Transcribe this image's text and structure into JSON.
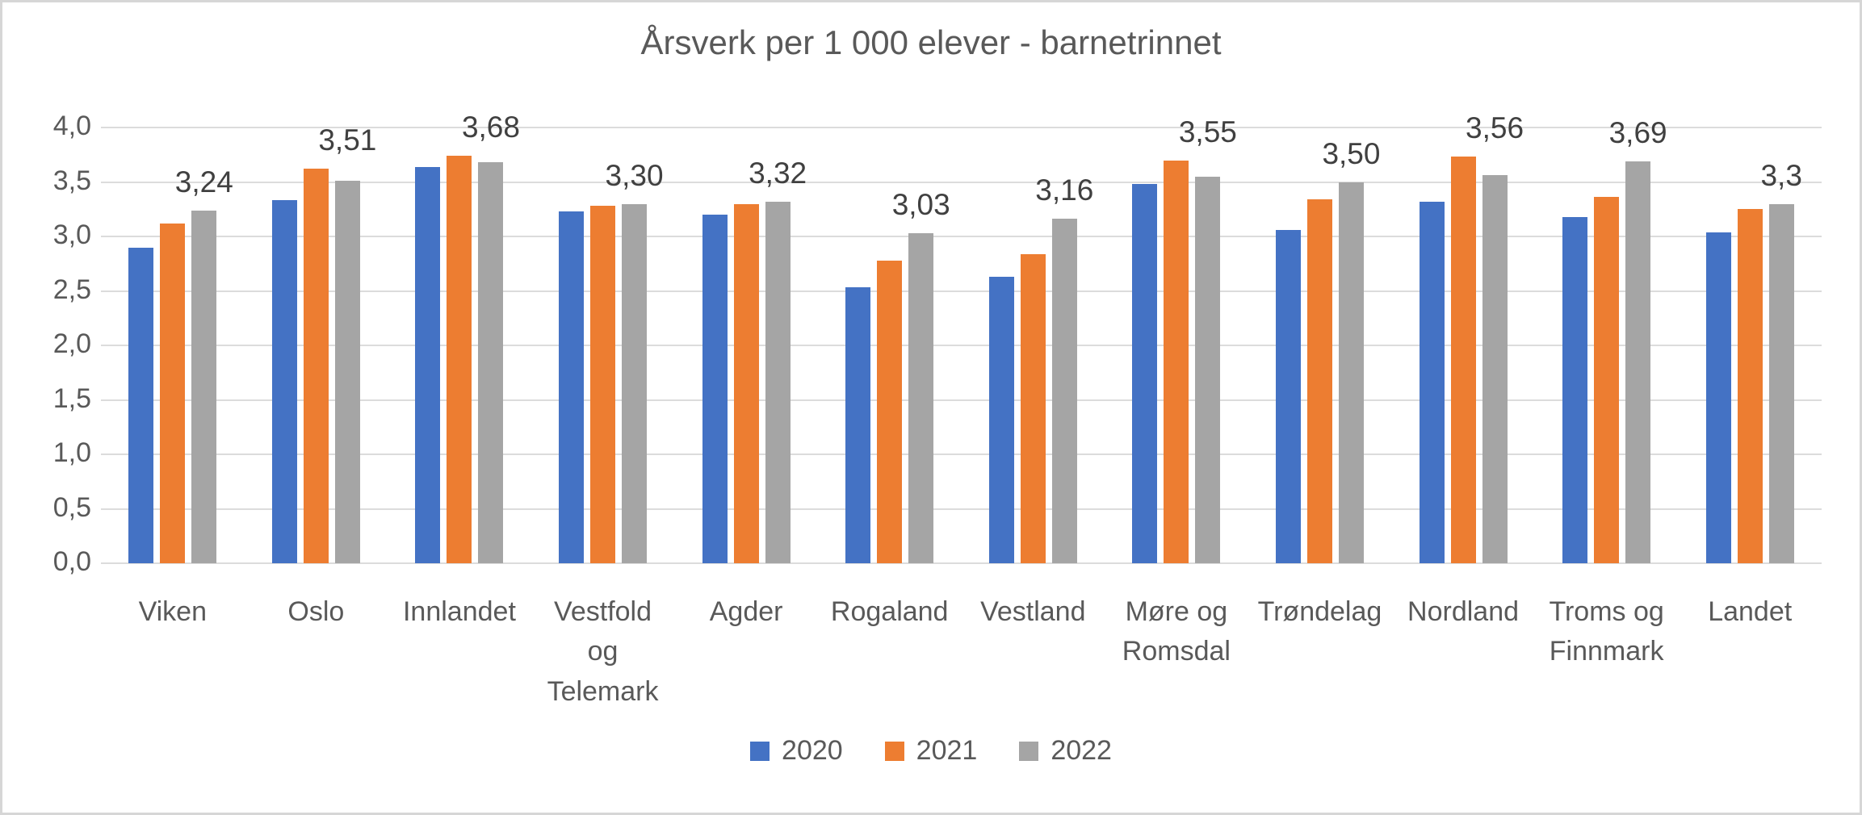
{
  "chart_data": {
    "type": "bar",
    "title": "Årsverk per 1 000 elever - barnetrinnet",
    "categories": [
      "Viken",
      "Oslo",
      "Innlandet",
      "Vestfold\nog\nTelemark",
      "Agder",
      "Rogaland",
      "Vestland",
      "Møre og\nRomsdal",
      "Trøndelag",
      "Nordland",
      "Troms og\nFinnmark",
      "Landet"
    ],
    "series": [
      {
        "name": "2020",
        "color": "#4472c4",
        "values": [
          2.9,
          3.33,
          3.64,
          3.23,
          3.2,
          2.53,
          2.63,
          3.48,
          3.06,
          3.32,
          3.18,
          3.04
        ]
      },
      {
        "name": "2021",
        "color": "#ed7d31",
        "values": [
          3.12,
          3.62,
          3.74,
          3.28,
          3.3,
          2.78,
          2.84,
          3.7,
          3.34,
          3.73,
          3.36,
          3.25
        ]
      },
      {
        "name": "2022",
        "color": "#a5a5a5",
        "values": [
          3.24,
          3.51,
          3.68,
          3.3,
          3.32,
          3.03,
          3.16,
          3.55,
          3.5,
          3.56,
          3.69,
          3.3
        ],
        "data_labels": [
          "3,24",
          "3,51",
          "3,68",
          "3,30",
          "3,32",
          "3,03",
          "3,16",
          "3,55",
          "3,50",
          "3,56",
          "3,69",
          "3,3"
        ]
      }
    ],
    "ylim": [
      0,
      4
    ],
    "yticks": [
      "0,0",
      "0,5",
      "1,0",
      "1,5",
      "2,0",
      "2,5",
      "3,0",
      "3,5",
      "4,0"
    ],
    "grid": true,
    "legend_position": "bottom",
    "colors": {
      "gridline": "#dcdcdc",
      "title_text": "#595959",
      "axis_text": "#595959",
      "data_label_text": "#404040",
      "border": "#d6d6d6"
    }
  }
}
